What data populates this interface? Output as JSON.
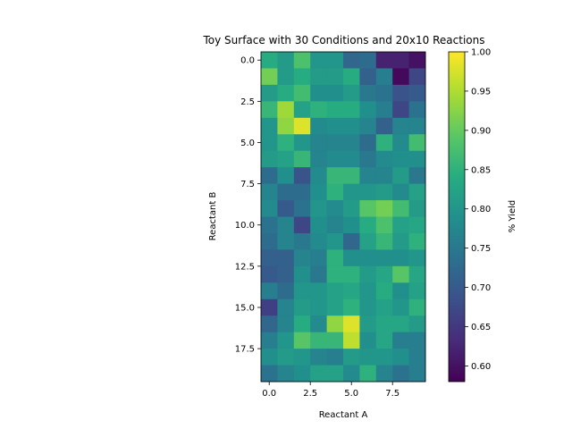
{
  "chart_data": {
    "type": "heatmap",
    "title": "Toy Surface with 30 Conditions and 20x10 Reactions",
    "xlabel": "Reactant A",
    "ylabel": "Reactant B",
    "colorbar_label": "% Yield",
    "colormap": "viridis",
    "value_range": [
      0.58,
      1.0
    ],
    "n_rows": 20,
    "n_cols": 10,
    "x_ticks": [
      {
        "value": 0,
        "label": "0.0"
      },
      {
        "value": 2.5,
        "label": "2.5"
      },
      {
        "value": 5,
        "label": "5.0"
      },
      {
        "value": 7.5,
        "label": "7.5"
      }
    ],
    "y_ticks": [
      {
        "value": 0,
        "label": "0.0"
      },
      {
        "value": 2.5,
        "label": "2.5"
      },
      {
        "value": 5,
        "label": "5.0"
      },
      {
        "value": 7.5,
        "label": "7.5"
      },
      {
        "value": 10,
        "label": "10.0"
      },
      {
        "value": 12.5,
        "label": "12.5"
      },
      {
        "value": 15,
        "label": "15.0"
      },
      {
        "value": 17.5,
        "label": "17.5"
      }
    ],
    "colorbar_ticks": [
      {
        "value": 0.6,
        "label": "0.60"
      },
      {
        "value": 0.65,
        "label": "0.65"
      },
      {
        "value": 0.7,
        "label": "0.70"
      },
      {
        "value": 0.75,
        "label": "0.75"
      },
      {
        "value": 0.8,
        "label": "0.80"
      },
      {
        "value": 0.85,
        "label": "0.85"
      },
      {
        "value": 0.9,
        "label": "0.90"
      },
      {
        "value": 0.95,
        "label": "0.95"
      },
      {
        "value": 1.0,
        "label": "1.00"
      }
    ],
    "values": [
      [
        0.84,
        0.81,
        0.88,
        0.8,
        0.8,
        0.72,
        0.73,
        0.62,
        0.62,
        0.6
      ],
      [
        0.91,
        0.81,
        0.84,
        0.81,
        0.81,
        0.84,
        0.71,
        0.76,
        0.59,
        0.67
      ],
      [
        0.81,
        0.84,
        0.87,
        0.79,
        0.79,
        0.81,
        0.75,
        0.74,
        0.69,
        0.7
      ],
      [
        0.86,
        0.94,
        0.82,
        0.85,
        0.84,
        0.84,
        0.79,
        0.76,
        0.67,
        0.74
      ],
      [
        0.8,
        0.93,
        0.98,
        0.78,
        0.79,
        0.79,
        0.77,
        0.71,
        0.77,
        0.77
      ],
      [
        0.8,
        0.85,
        0.8,
        0.77,
        0.77,
        0.77,
        0.73,
        0.85,
        0.78,
        0.87
      ],
      [
        0.81,
        0.82,
        0.86,
        0.77,
        0.78,
        0.78,
        0.75,
        0.78,
        0.79,
        0.79
      ],
      [
        0.73,
        0.79,
        0.69,
        0.78,
        0.86,
        0.86,
        0.77,
        0.77,
        0.81,
        0.75
      ],
      [
        0.77,
        0.73,
        0.73,
        0.79,
        0.85,
        0.8,
        0.8,
        0.81,
        0.78,
        0.82
      ],
      [
        0.78,
        0.7,
        0.74,
        0.8,
        0.78,
        0.81,
        0.89,
        0.91,
        0.87,
        0.81
      ],
      [
        0.74,
        0.77,
        0.67,
        0.79,
        0.77,
        0.79,
        0.84,
        0.88,
        0.82,
        0.83
      ],
      [
        0.73,
        0.77,
        0.75,
        0.78,
        0.8,
        0.72,
        0.82,
        0.86,
        0.81,
        0.85
      ],
      [
        0.71,
        0.71,
        0.77,
        0.76,
        0.85,
        0.79,
        0.79,
        0.79,
        0.79,
        0.8
      ],
      [
        0.7,
        0.71,
        0.79,
        0.75,
        0.85,
        0.85,
        0.81,
        0.83,
        0.89,
        0.83
      ],
      [
        0.76,
        0.73,
        0.8,
        0.8,
        0.82,
        0.83,
        0.8,
        0.84,
        0.79,
        0.82
      ],
      [
        0.66,
        0.77,
        0.81,
        0.8,
        0.82,
        0.85,
        0.8,
        0.82,
        0.8,
        0.85
      ],
      [
        0.72,
        0.77,
        0.84,
        0.78,
        0.93,
        0.98,
        0.81,
        0.83,
        0.83,
        0.81
      ],
      [
        0.76,
        0.8,
        0.89,
        0.86,
        0.86,
        0.96,
        0.79,
        0.83,
        0.76,
        0.76
      ],
      [
        0.79,
        0.81,
        0.8,
        0.77,
        0.76,
        0.81,
        0.8,
        0.8,
        0.79,
        0.76
      ],
      [
        0.74,
        0.77,
        0.79,
        0.82,
        0.82,
        0.78,
        0.85,
        0.77,
        0.74,
        0.76
      ]
    ]
  }
}
